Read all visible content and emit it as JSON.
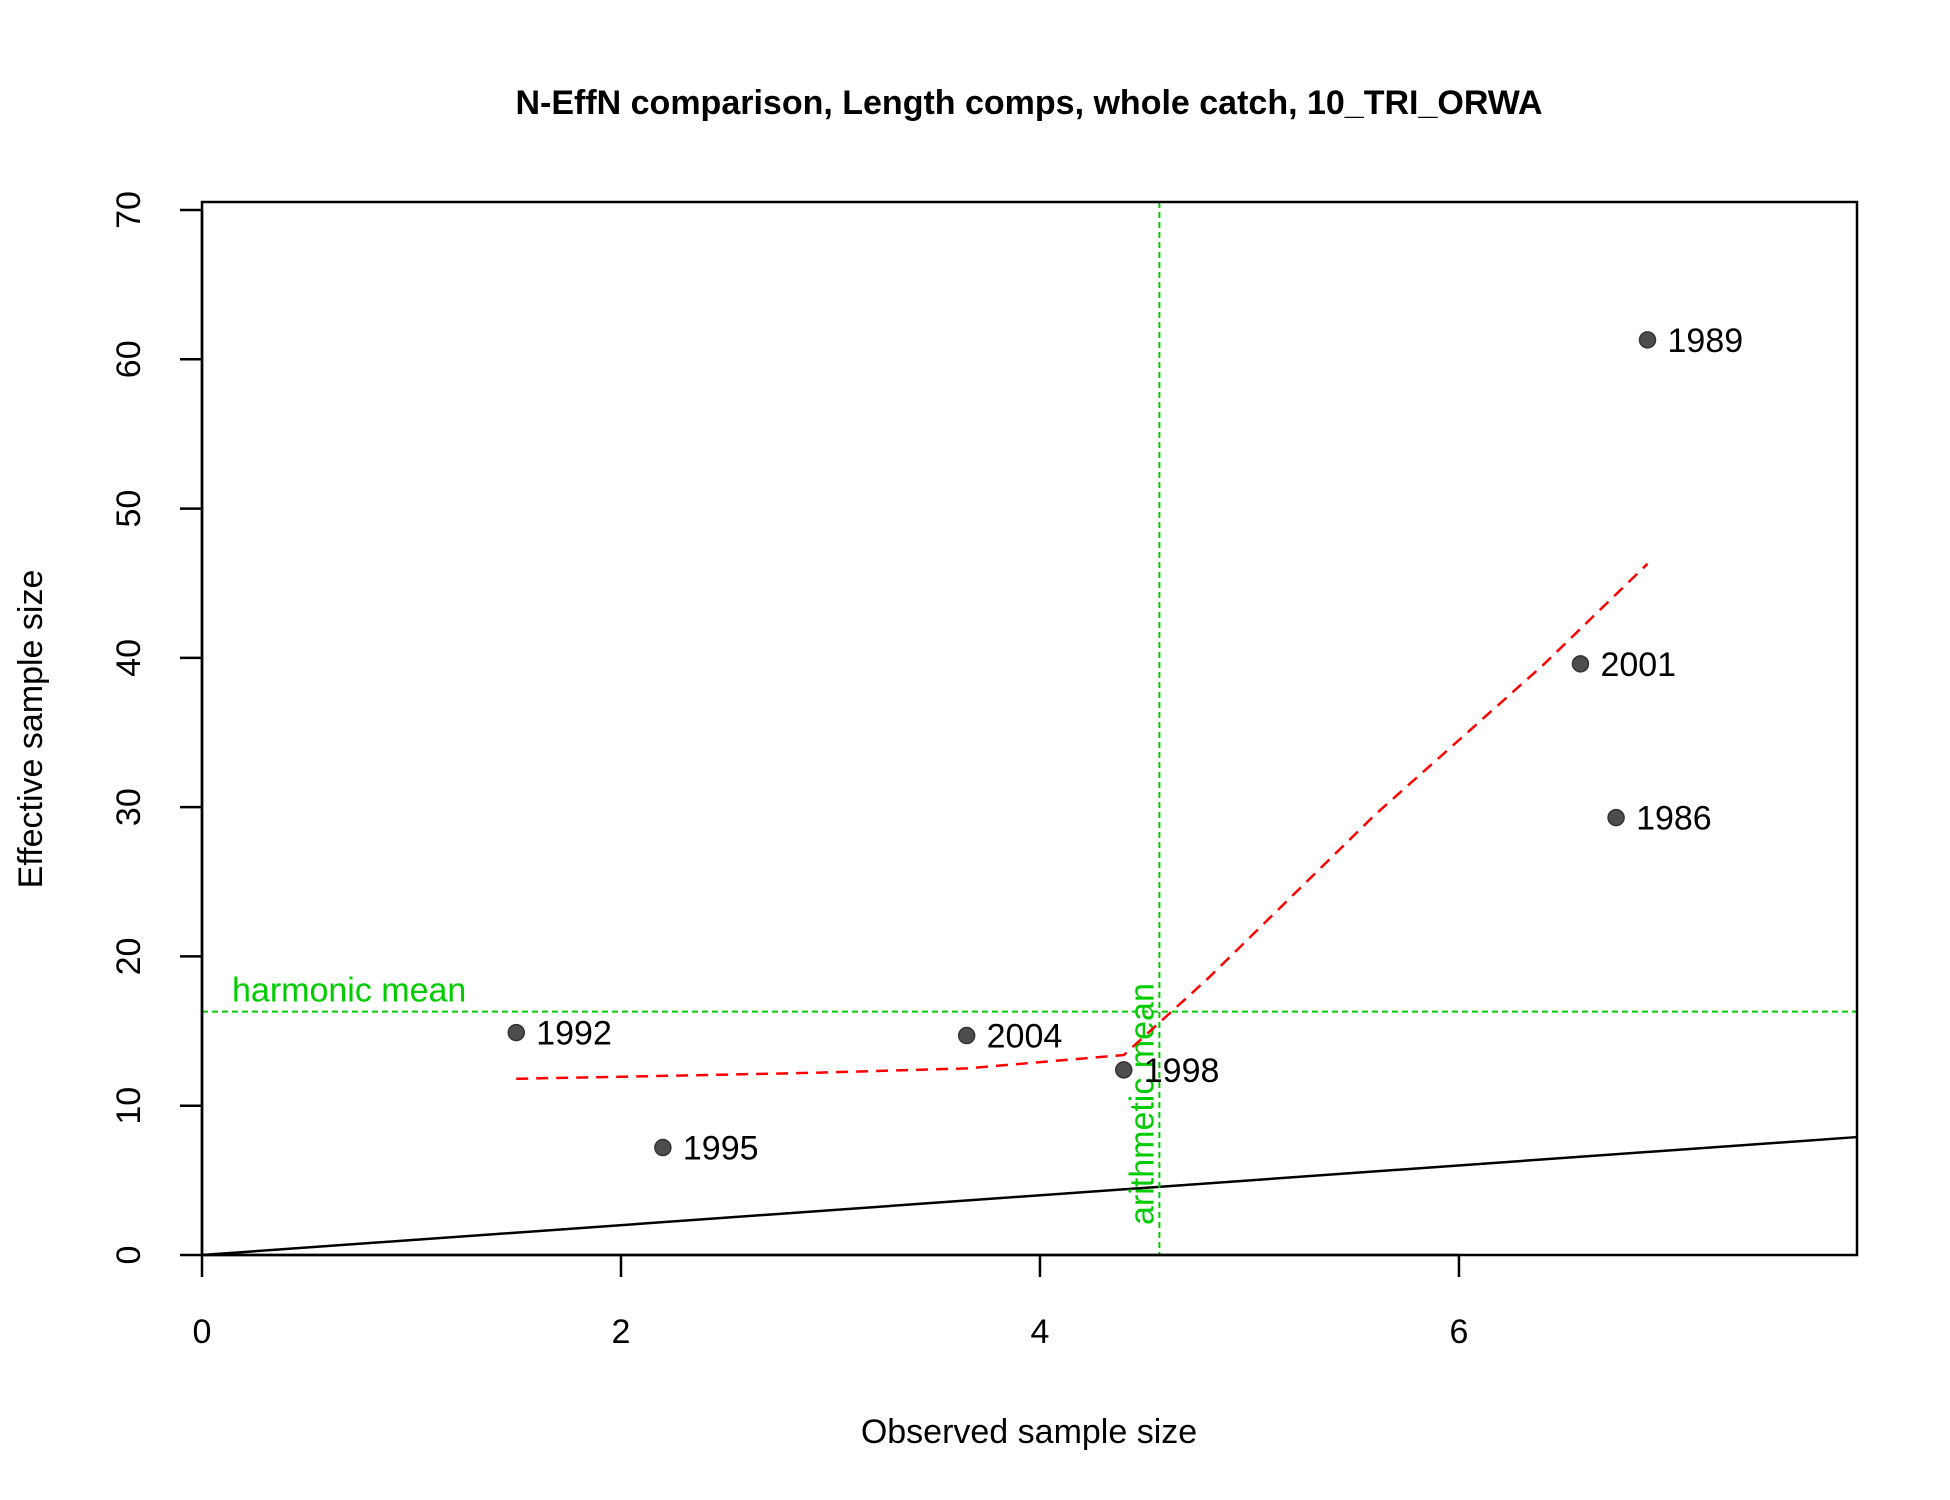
{
  "chart_data": {
    "type": "scatter",
    "title": "N-EffN comparison, Length comps, whole catch, 10_TRI_ORWA",
    "xlabel": "Observed sample size",
    "ylabel": "Effective sample size",
    "xlim": [
      0,
      7.9
    ],
    "ylim": [
      0,
      70
    ],
    "x_ticks": [
      0,
      2,
      4,
      6
    ],
    "y_ticks": [
      0,
      10,
      20,
      30,
      40,
      50,
      60,
      70
    ],
    "points": [
      {
        "label": "1986",
        "x": 6.75,
        "y": 29.3
      },
      {
        "label": "1989",
        "x": 6.9,
        "y": 61.3
      },
      {
        "label": "1992",
        "x": 1.5,
        "y": 14.9
      },
      {
        "label": "1995",
        "x": 2.2,
        "y": 7.2
      },
      {
        "label": "1998",
        "x": 4.4,
        "y": 12.4
      },
      {
        "label": "2001",
        "x": 6.58,
        "y": 39.6
      },
      {
        "label": "2004",
        "x": 3.65,
        "y": 14.7
      }
    ],
    "smoother": {
      "x": [
        1.5,
        2.2,
        2.9,
        3.65,
        4.4,
        4.8,
        5.2,
        5.6,
        6.0,
        6.4,
        6.9
      ],
      "y": [
        11.8,
        12.0,
        12.2,
        12.5,
        13.4,
        18.5,
        24.0,
        29.5,
        34.5,
        39.5,
        46.3
      ]
    },
    "identity_line": {
      "x": [
        0,
        7.9
      ],
      "y": [
        0,
        7.9
      ]
    },
    "harmonic_mean": {
      "label": "harmonic mean",
      "value": 16.3
    },
    "arithmetic_mean": {
      "label": "arithmetic mean",
      "value": 4.57
    },
    "colors": {
      "points": "#4d4d4d",
      "smoother": "#ff0000",
      "reference": "#00cc00",
      "identity": "#000000"
    }
  }
}
